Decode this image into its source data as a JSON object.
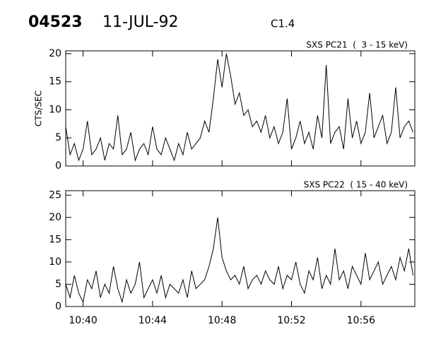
{
  "header": {
    "id": "04523",
    "date": "11-JUL-92",
    "class": "C1.4"
  },
  "chart_data": [
    {
      "type": "line",
      "title": "SXS PC21  (  3 - 15 keV)",
      "y_label": "CTS/SEC",
      "color": "#000000",
      "x": [
        639,
        639.25,
        639.5,
        639.75,
        640,
        640.25,
        640.5,
        640.75,
        641,
        641.25,
        641.5,
        641.75,
        642,
        642.25,
        642.5,
        642.75,
        643,
        643.25,
        643.5,
        643.75,
        644,
        644.25,
        644.5,
        644.75,
        645,
        645.25,
        645.5,
        645.75,
        646,
        646.25,
        646.5,
        646.75,
        647,
        647.25,
        647.5,
        647.75,
        648,
        648.25,
        648.5,
        648.75,
        649,
        649.25,
        649.5,
        649.75,
        650,
        650.25,
        650.5,
        650.75,
        651,
        651.25,
        651.5,
        651.75,
        652,
        652.25,
        652.5,
        652.75,
        653,
        653.25,
        653.5,
        653.75,
        654,
        654.25,
        654.5,
        654.75,
        655,
        655.25,
        655.5,
        655.75,
        656,
        656.25,
        656.5,
        656.75,
        657,
        657.25,
        657.5,
        657.75,
        658,
        658.25,
        658.5,
        658.75,
        659
      ],
      "values": [
        7,
        2,
        4,
        1,
        3,
        8,
        2,
        3,
        5,
        1,
        4,
        3,
        9,
        2,
        3,
        6,
        1,
        3,
        4,
        2,
        7,
        3,
        2,
        5,
        3,
        1,
        4,
        2,
        6,
        3,
        4,
        5,
        8,
        6,
        12,
        19,
        14,
        20,
        16,
        11,
        13,
        9,
        10,
        7,
        8,
        6,
        9,
        5,
        7,
        4,
        6,
        12,
        3,
        5,
        8,
        4,
        6,
        3,
        9,
        5,
        18,
        4,
        6,
        7,
        3,
        12,
        5,
        8,
        4,
        6,
        13,
        5,
        7,
        9,
        4,
        6,
        14,
        5,
        7,
        8,
        6
      ],
      "xlim": [
        639,
        659.1
      ],
      "ylim": [
        0,
        20.5
      ],
      "yticks": [
        0,
        5,
        10,
        15,
        20
      ]
    },
    {
      "type": "line",
      "title": "SXS PC22  ( 15 - 40 keV)",
      "color": "#000000",
      "x": [
        639,
        639.25,
        639.5,
        639.75,
        640,
        640.25,
        640.5,
        640.75,
        641,
        641.25,
        641.5,
        641.75,
        642,
        642.25,
        642.5,
        642.75,
        643,
        643.25,
        643.5,
        643.75,
        644,
        644.25,
        644.5,
        644.75,
        645,
        645.25,
        645.5,
        645.75,
        646,
        646.25,
        646.5,
        646.75,
        647,
        647.25,
        647.5,
        647.75,
        648,
        648.25,
        648.5,
        648.75,
        649,
        649.25,
        649.5,
        649.75,
        650,
        650.25,
        650.5,
        650.75,
        651,
        651.25,
        651.5,
        651.75,
        652,
        652.25,
        652.5,
        652.75,
        653,
        653.25,
        653.5,
        653.75,
        654,
        654.25,
        654.5,
        654.75,
        655,
        655.25,
        655.5,
        655.75,
        656,
        656.25,
        656.5,
        656.75,
        657,
        657.25,
        657.5,
        657.75,
        658,
        658.25,
        658.5,
        658.75,
        659
      ],
      "values": [
        5,
        2,
        7,
        3,
        1,
        6,
        4,
        8,
        2,
        5,
        3,
        9,
        4,
        1,
        6,
        3,
        5,
        10,
        2,
        4,
        6,
        3,
        7,
        2,
        5,
        4,
        3,
        6,
        2,
        8,
        4,
        5,
        6,
        9,
        13,
        20,
        11,
        8,
        6,
        7,
        5,
        9,
        4,
        6,
        7,
        5,
        8,
        6,
        5,
        9,
        4,
        7,
        6,
        10,
        5,
        3,
        8,
        6,
        11,
        4,
        7,
        5,
        13,
        6,
        8,
        4,
        9,
        7,
        5,
        12,
        6,
        8,
        10,
        5,
        7,
        9,
        6,
        11,
        8,
        13,
        7
      ],
      "xlim": [
        639,
        659.1
      ],
      "ylim": [
        0,
        26
      ],
      "xticks": [
        {
          "value": 640,
          "label": "10:40"
        },
        {
          "value": 644,
          "label": "10:44"
        },
        {
          "value": 648,
          "label": "10:48"
        },
        {
          "value": 652,
          "label": "10:52"
        },
        {
          "value": 656,
          "label": "10:56"
        }
      ],
      "yticks": [
        0,
        5,
        10,
        15,
        20,
        25
      ]
    }
  ]
}
